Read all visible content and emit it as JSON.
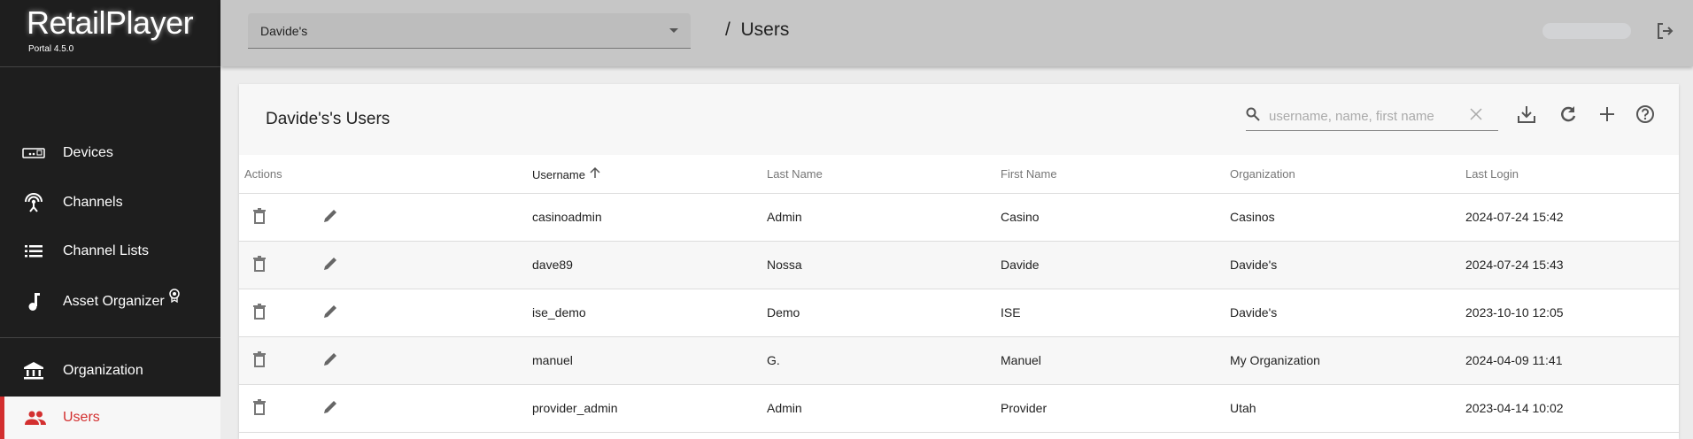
{
  "brand": {
    "name": "RetailPlayer",
    "version": "Portal 4.5.0"
  },
  "sidebar": {
    "items": [
      {
        "label": "Devices",
        "icon": "device-icon"
      },
      {
        "label": "Channels",
        "icon": "antenna-icon"
      },
      {
        "label": "Channel Lists",
        "icon": "list-icon"
      },
      {
        "label": "Asset Organizer",
        "icon": "music-note-icon",
        "badge": "award-icon"
      },
      {
        "label": "Organization",
        "icon": "bank-icon"
      },
      {
        "label": "Users",
        "icon": "people-icon",
        "active": true
      }
    ]
  },
  "header": {
    "org_select": "Davide's",
    "breadcrumb": "/  Users"
  },
  "card": {
    "title": "Davide's's Users",
    "search_placeholder": "username, name, first name"
  },
  "table": {
    "columns": [
      "Actions",
      "Username",
      "Last Name",
      "First Name",
      "Organization",
      "Last Login"
    ],
    "sort": {
      "column": "Username",
      "direction": "ascending"
    },
    "rows": [
      [
        "casinoadmin",
        "Admin",
        "Casino",
        "Casinos",
        "2024-07-24 15:42"
      ],
      [
        "dave89",
        "Nossa",
        "Davide",
        "Davide's",
        "2024-07-24 15:43"
      ],
      [
        "ise_demo",
        "Demo",
        "ISE",
        "Davide's",
        "2023-10-10 12:05"
      ],
      [
        "manuel",
        "G.",
        "Manuel",
        "My Organization",
        "2024-04-09 11:41"
      ],
      [
        "provider_admin",
        "Admin",
        "Provider",
        "Utah",
        "2023-04-14 10:02"
      ]
    ]
  },
  "colors": {
    "accent": "#d32f2f",
    "sidebar": "#1e1e1e",
    "header": "#c6c6c6"
  }
}
